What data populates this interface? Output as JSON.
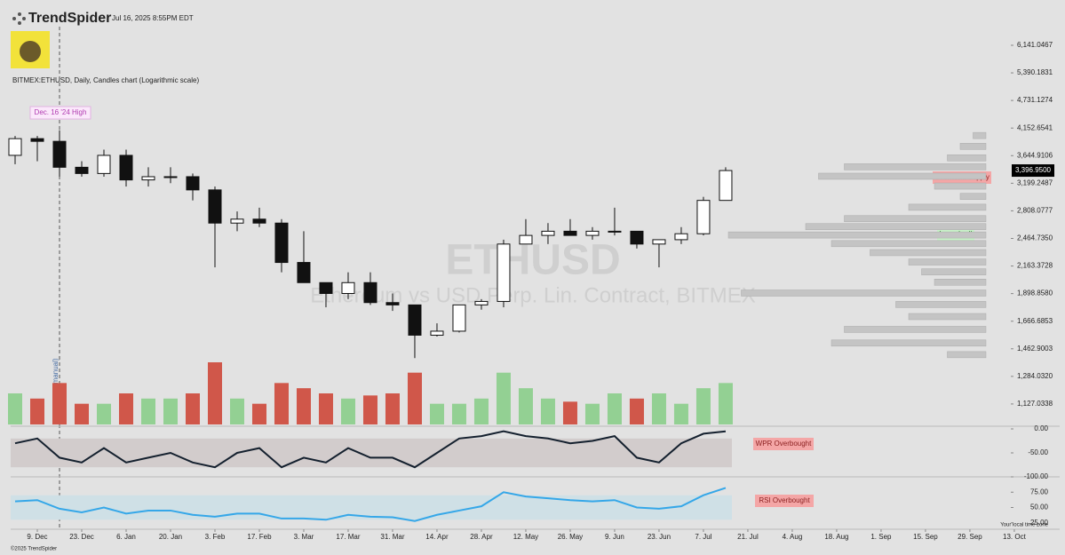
{
  "header": {
    "brand": "TrendSpider",
    "timestamp": "Jul 16, 2025 8:55PM EDT",
    "description": "BITMEX:ETHUSD, Daily, Candles chart (Logarithmic scale)",
    "watermark": "ETHUSD",
    "watermark_sub": "Ethereum vs USD Perp. Lin. Contract, BITMEX",
    "footer": "©2025 TrendSpider",
    "timezone": "Your local time zone"
  },
  "annotations": {
    "high": "Dec. 16 '24 High",
    "supply": "Overhead Supply",
    "launched": "Launched!",
    "wpr": "WPR Overbought",
    "rsi": "RSI Overbought",
    "vbp": "VbP start (manual)"
  },
  "chart_data": {
    "type": "candlestick",
    "log_scale": true,
    "grid": false,
    "up_color": "#ffffff",
    "down_color": "#111111",
    "vol_up_color": "#93d093",
    "vol_down_color": "#d0574a",
    "x": [
      -7,
      0,
      7,
      14,
      21,
      28,
      35,
      42,
      49,
      56,
      63,
      70,
      77,
      84,
      91,
      98,
      105,
      112,
      119,
      126,
      133,
      140,
      147,
      154,
      161,
      168,
      175,
      182,
      189,
      196,
      203,
      210,
      217
    ],
    "open": [
      3650,
      3950,
      3900,
      3450,
      3350,
      3650,
      3250,
      3300,
      3300,
      3100,
      2650,
      2700,
      2650,
      2200,
      2000,
      1900,
      2000,
      1820,
      1800,
      1560,
      1590,
      1800,
      1830,
      2400,
      2500,
      2550,
      2500,
      2550,
      2550,
      2400,
      2450,
      2520,
      2950
    ],
    "high": [
      4000,
      4000,
      4110,
      3550,
      3750,
      3750,
      3450,
      3450,
      3350,
      3150,
      2800,
      2850,
      2700,
      2550,
      2000,
      2100,
      2100,
      1900,
      1800,
      1650,
      1800,
      1850,
      2450,
      2700,
      2650,
      2700,
      2600,
      2850,
      2550,
      2450,
      2600,
      3000,
      3450
    ],
    "low": [
      3500,
      3550,
      3300,
      3300,
      3300,
      3150,
      3150,
      3200,
      2950,
      2150,
      2550,
      2600,
      2100,
      2000,
      1780,
      1850,
      1800,
      1750,
      1400,
      1550,
      1580,
      1760,
      1780,
      2400,
      2400,
      2500,
      2450,
      2500,
      2350,
      2150,
      2400,
      2500,
      2950
    ],
    "close": [
      3950,
      3900,
      3450,
      3350,
      3650,
      3250,
      3300,
      3300,
      3100,
      2650,
      2700,
      2650,
      2200,
      2000,
      1900,
      2000,
      1820,
      1800,
      1560,
      1590,
      1800,
      1830,
      2400,
      2500,
      2550,
      2500,
      2550,
      2550,
      2400,
      2450,
      2520,
      2950,
      3396.95
    ],
    "volume": [
      30,
      25,
      40,
      20,
      20,
      30,
      25,
      25,
      30,
      60,
      25,
      20,
      40,
      35,
      30,
      25,
      28,
      30,
      50,
      20,
      20,
      25,
      50,
      35,
      25,
      22,
      20,
      30,
      25,
      30,
      20,
      35,
      40
    ],
    "wpr": [
      -30,
      -20,
      -60,
      -70,
      -40,
      -70,
      -60,
      -50,
      -70,
      -80,
      -50,
      -40,
      -80,
      -60,
      -70,
      -40,
      -60,
      -60,
      -80,
      -50,
      -20,
      -15,
      -5,
      -15,
      -20,
      -30,
      -25,
      -15,
      -60,
      -70,
      -30,
      -10,
      -5
    ],
    "rsi": [
      60,
      62,
      48,
      42,
      50,
      40,
      45,
      45,
      38,
      35,
      40,
      40,
      32,
      32,
      30,
      38,
      35,
      34,
      28,
      38,
      45,
      52,
      75,
      68,
      65,
      62,
      60,
      62,
      50,
      48,
      52,
      70,
      82
    ],
    "last_label": {
      "value": 3396.95,
      "label": "3,396.9500"
    },
    "profile_prices": [
      4000,
      3800,
      3600,
      3450,
      3300,
      3150,
      3000,
      2850,
      2700,
      2600,
      2500,
      2400,
      2300,
      2200,
      2100,
      2000,
      1900,
      1800,
      1700,
      1600,
      1500,
      1420
    ],
    "profile_values": [
      5,
      10,
      15,
      55,
      65,
      20,
      10,
      30,
      55,
      70,
      100,
      60,
      45,
      30,
      25,
      20,
      95,
      35,
      30,
      55,
      60,
      15
    ],
    "xlim": [
      -8.4,
      322.3
    ],
    "xticks": [
      {
        "value": 0,
        "label": "9. Dec"
      },
      {
        "value": 14,
        "label": "23. Dec"
      },
      {
        "value": 28,
        "label": "6. Jan"
      },
      {
        "value": 42,
        "label": "20. Jan"
      },
      {
        "value": 56,
        "label": "3. Feb"
      },
      {
        "value": 70,
        "label": "17. Feb"
      },
      {
        "value": 84,
        "label": "3. Mar"
      },
      {
        "value": 98,
        "label": "17. Mar"
      },
      {
        "value": 112,
        "label": "31. Mar"
      },
      {
        "value": 126,
        "label": "14. Apr"
      },
      {
        "value": 140,
        "label": "28. Apr"
      },
      {
        "value": 154,
        "label": "12. May"
      },
      {
        "value": 168,
        "label": "26. May"
      },
      {
        "value": 182,
        "label": "9. Jun"
      },
      {
        "value": 196,
        "label": "23. Jun"
      },
      {
        "value": 210,
        "label": "7. Jul"
      },
      {
        "value": 224,
        "label": "21. Jul"
      },
      {
        "value": 238,
        "label": "4. Aug"
      },
      {
        "value": 252,
        "label": "18. Aug"
      },
      {
        "value": 266,
        "label": "1. Sep"
      },
      {
        "value": 280,
        "label": "15. Sep"
      },
      {
        "value": 294,
        "label": "29. Sep"
      },
      {
        "value": 308,
        "label": "13. Oct"
      }
    ],
    "ylim": [
      1023,
      6431
    ],
    "yticks": [
      {
        "value": 6141.0467,
        "label": "6,141.0467"
      },
      {
        "value": 5390.1831,
        "label": "5,390.1831"
      },
      {
        "value": 4731.1274,
        "label": "4,731.1274"
      },
      {
        "value": 4152.6541,
        "label": "4,152.6541"
      },
      {
        "value": 3644.9106,
        "label": "3,644.9106"
      },
      {
        "value": 3199.2487,
        "label": "3,199.2487"
      },
      {
        "value": 2808.0777,
        "label": "2,808.0777"
      },
      {
        "value": 2464.735,
        "label": "2,464.7350"
      },
      {
        "value": 2163.3728,
        "label": "2,163.3728"
      },
      {
        "value": 1898.858,
        "label": "1,898.8580"
      },
      {
        "value": 1666.6853,
        "label": "1,666.6853"
      },
      {
        "value": 1462.9003,
        "label": "1,462.9003"
      },
      {
        "value": 1284.032,
        "label": "1,284.0320"
      },
      {
        "value": 1127.0338,
        "label": "1,127.0338"
      }
    ],
    "wpr_lim": [
      -100,
      0
    ],
    "wpr_band": [
      -80,
      -20
    ],
    "wpr_ticks": [
      {
        "value": 0,
        "label": "0.00"
      },
      {
        "value": -50,
        "label": "-50.00"
      },
      {
        "value": -100,
        "label": "-100.00"
      }
    ],
    "rsi_lim": [
      0,
      100
    ],
    "rsi_band": [
      30,
      70
    ],
    "rsi_ticks": [
      {
        "value": 75,
        "label": "75.00"
      },
      {
        "value": 50,
        "label": "50.00"
      },
      {
        "value": 25,
        "label": "25.00"
      }
    ]
  }
}
